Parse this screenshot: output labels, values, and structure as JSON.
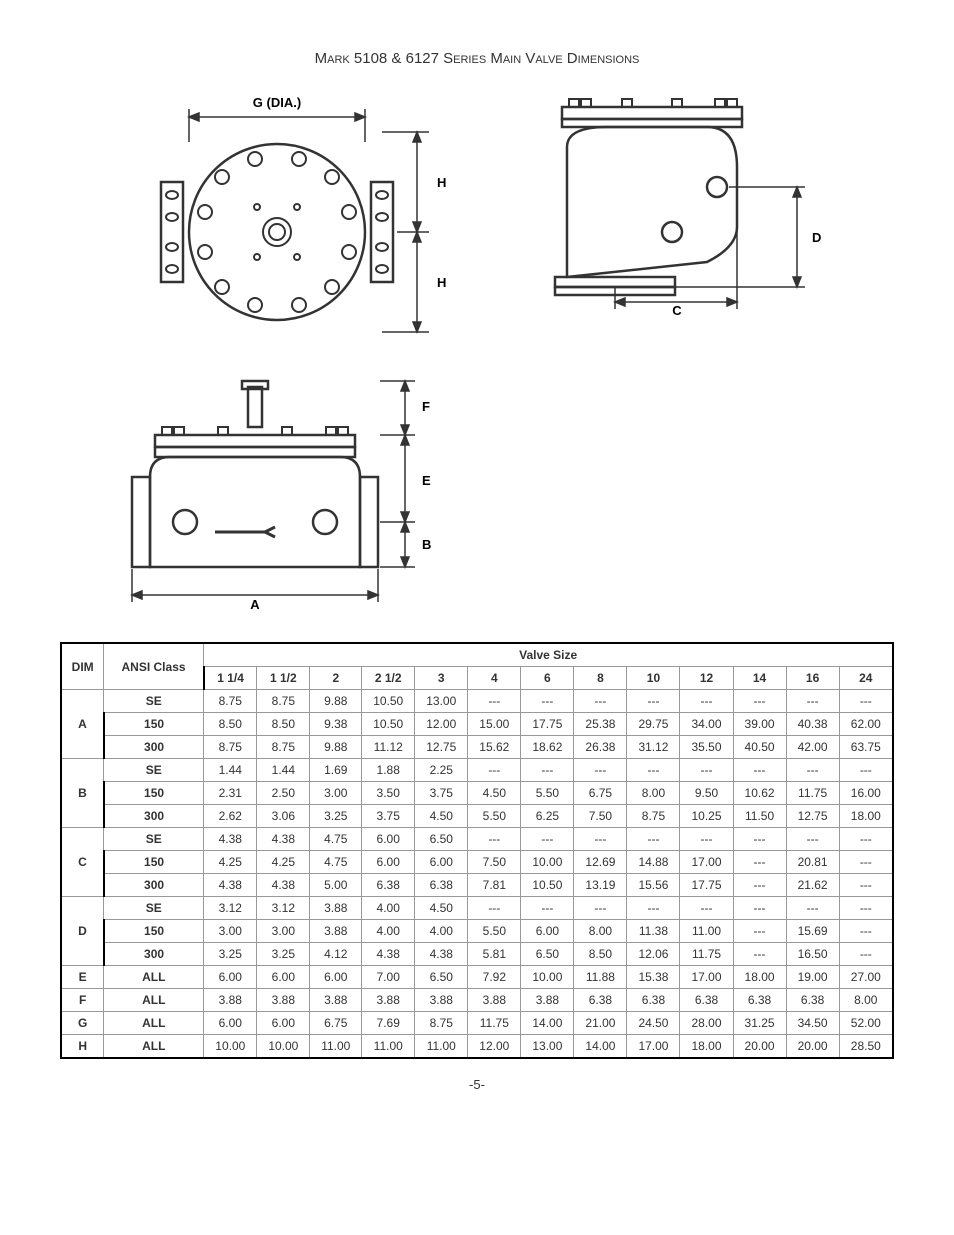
{
  "title": "Mark 5108 & 6127 Series Main Valve Dimensions",
  "pageNumber": "-5-",
  "diagram_labels": {
    "top_view_G": "G (DIA.)",
    "top_view_H1": "H",
    "top_view_H2": "H",
    "side_angle_D": "D",
    "side_angle_C": "C",
    "side_view_F": "F",
    "side_view_E": "E",
    "side_view_B": "B",
    "side_view_A": "A"
  },
  "table": {
    "header": {
      "dim": "DIM",
      "class": "ANSI Class",
      "spanner": "Valve Size",
      "sizes": [
        "1 1/4",
        "1 1/2",
        "2",
        "2 1/2",
        "3",
        "4",
        "6",
        "8",
        "10",
        "12",
        "14",
        "16",
        "24"
      ]
    },
    "groups": [
      {
        "dim": "A",
        "rows": [
          {
            "class": "SE",
            "vals": [
              "8.75",
              "8.75",
              "9.88",
              "10.50",
              "13.00",
              "---",
              "---",
              "---",
              "---",
              "---",
              "---",
              "---",
              "---"
            ]
          },
          {
            "class": "150",
            "vals": [
              "8.50",
              "8.50",
              "9.38",
              "10.50",
              "12.00",
              "15.00",
              "17.75",
              "25.38",
              "29.75",
              "34.00",
              "39.00",
              "40.38",
              "62.00"
            ]
          },
          {
            "class": "300",
            "vals": [
              "8.75",
              "8.75",
              "9.88",
              "11.12",
              "12.75",
              "15.62",
              "18.62",
              "26.38",
              "31.12",
              "35.50",
              "40.50",
              "42.00",
              "63.75"
            ]
          }
        ]
      },
      {
        "dim": "B",
        "rows": [
          {
            "class": "SE",
            "vals": [
              "1.44",
              "1.44",
              "1.69",
              "1.88",
              "2.25",
              "---",
              "---",
              "---",
              "---",
              "---",
              "---",
              "---",
              "---"
            ]
          },
          {
            "class": "150",
            "vals": [
              "2.31",
              "2.50",
              "3.00",
              "3.50",
              "3.75",
              "4.50",
              "5.50",
              "6.75",
              "8.00",
              "9.50",
              "10.62",
              "11.75",
              "16.00"
            ]
          },
          {
            "class": "300",
            "vals": [
              "2.62",
              "3.06",
              "3.25",
              "3.75",
              "4.50",
              "5.50",
              "6.25",
              "7.50",
              "8.75",
              "10.25",
              "11.50",
              "12.75",
              "18.00"
            ]
          }
        ]
      },
      {
        "dim": "C",
        "rows": [
          {
            "class": "SE",
            "vals": [
              "4.38",
              "4.38",
              "4.75",
              "6.00",
              "6.50",
              "---",
              "---",
              "---",
              "---",
              "---",
              "---",
              "---",
              "---"
            ]
          },
          {
            "class": "150",
            "vals": [
              "4.25",
              "4.25",
              "4.75",
              "6.00",
              "6.00",
              "7.50",
              "10.00",
              "12.69",
              "14.88",
              "17.00",
              "---",
              "20.81",
              "---"
            ]
          },
          {
            "class": "300",
            "vals": [
              "4.38",
              "4.38",
              "5.00",
              "6.38",
              "6.38",
              "7.81",
              "10.50",
              "13.19",
              "15.56",
              "17.75",
              "---",
              "21.62",
              "---"
            ]
          }
        ]
      },
      {
        "dim": "D",
        "rows": [
          {
            "class": "SE",
            "vals": [
              "3.12",
              "3.12",
              "3.88",
              "4.00",
              "4.50",
              "---",
              "---",
              "---",
              "---",
              "---",
              "---",
              "---",
              "---"
            ]
          },
          {
            "class": "150",
            "vals": [
              "3.00",
              "3.00",
              "3.88",
              "4.00",
              "4.00",
              "5.50",
              "6.00",
              "8.00",
              "11.38",
              "11.00",
              "---",
              "15.69",
              "---"
            ]
          },
          {
            "class": "300",
            "vals": [
              "3.25",
              "3.25",
              "4.12",
              "4.38",
              "4.38",
              "5.81",
              "6.50",
              "8.50",
              "12.06",
              "11.75",
              "---",
              "16.50",
              "---"
            ]
          }
        ]
      },
      {
        "dim": "E",
        "rows": [
          {
            "class": "ALL",
            "vals": [
              "6.00",
              "6.00",
              "6.00",
              "7.00",
              "6.50",
              "7.92",
              "10.00",
              "11.88",
              "15.38",
              "17.00",
              "18.00",
              "19.00",
              "27.00"
            ]
          }
        ]
      },
      {
        "dim": "F",
        "rows": [
          {
            "class": "ALL",
            "vals": [
              "3.88",
              "3.88",
              "3.88",
              "3.88",
              "3.88",
              "3.88",
              "3.88",
              "6.38",
              "6.38",
              "6.38",
              "6.38",
              "6.38",
              "8.00"
            ]
          }
        ]
      },
      {
        "dim": "G",
        "rows": [
          {
            "class": "ALL",
            "vals": [
              "6.00",
              "6.00",
              "6.75",
              "7.69",
              "8.75",
              "11.75",
              "14.00",
              "21.00",
              "24.50",
              "28.00",
              "31.25",
              "34.50",
              "52.00"
            ]
          }
        ]
      },
      {
        "dim": "H",
        "rows": [
          {
            "class": "ALL",
            "vals": [
              "10.00",
              "10.00",
              "11.00",
              "11.00",
              "11.00",
              "12.00",
              "13.00",
              "14.00",
              "17.00",
              "18.00",
              "20.00",
              "20.00",
              "28.50"
            ]
          }
        ]
      }
    ]
  },
  "style": {
    "stroke": "#333333",
    "thick": 2.5,
    "thin": 1.5,
    "arrow": "#333333",
    "font": "Arial"
  }
}
